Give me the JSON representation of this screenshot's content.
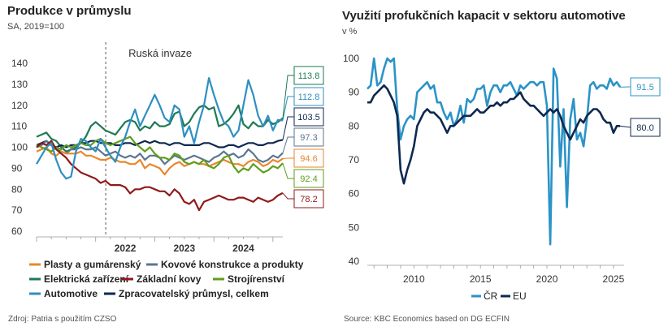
{
  "left": {
    "title": "Produkce v průmyslu",
    "subtitle": "SA, 2019=100",
    "source": "Zdroj: Patria s použitím CZSO",
    "chart_data": {
      "type": "line",
      "title": "Produkce v průmyslu",
      "ylabel": "SA, 2019=100",
      "ylim": [
        60,
        140
      ],
      "yticks": [
        60,
        70,
        80,
        90,
        100,
        110,
        120,
        130,
        140
      ],
      "xticks": [
        {
          "label": "2022",
          "x": 2022.5
        },
        {
          "label": "2023",
          "x": 2023.5
        },
        {
          "label": "2024",
          "x": 2024.5
        }
      ],
      "x_start": 2021.0,
      "x_step_months": 1,
      "annotation": {
        "text": "Ruská invaze",
        "x": 2022.17
      },
      "series": [
        {
          "name": "Automotive",
          "color": "#2e8fc0",
          "end_label": "112.8",
          "values": [
            92,
            96,
            100,
            102,
            94,
            88,
            85,
            86,
            98,
            104,
            103,
            100,
            98,
            104,
            100,
            96,
            93,
            100,
            105,
            112,
            118,
            110,
            115,
            120,
            125,
            120,
            114,
            112,
            120,
            118,
            105,
            110,
            102,
            112,
            120,
            133,
            125,
            118,
            112,
            110,
            105,
            108,
            120,
            132,
            125,
            115,
            110,
            115,
            108,
            113,
            112.8
          ]
        },
        {
          "name": "Elektrická zařízení",
          "color": "#1e7a52",
          "end_label": "113.8",
          "values": [
            105,
            106,
            107,
            104,
            103,
            100,
            98,
            99,
            100,
            102,
            105,
            110,
            112,
            110,
            108,
            107,
            106,
            109,
            112,
            113,
            112,
            108,
            110,
            109,
            112,
            110,
            110,
            111,
            116,
            117,
            110,
            112,
            116,
            119,
            120,
            118,
            119,
            110,
            111,
            113,
            116,
            120,
            111,
            109,
            112,
            110,
            110,
            113,
            111,
            112,
            113.8
          ]
        },
        {
          "name": "Zpracovatelský průmysl, celkem",
          "color": "#0f2850",
          "end_label": "103.5",
          "values": [
            101,
            102,
            103,
            101,
            100,
            101,
            100,
            101,
            101,
            102,
            102,
            103,
            103,
            102,
            102,
            102,
            101,
            101,
            102,
            102,
            101,
            102,
            103,
            102,
            103,
            102,
            102,
            101,
            102,
            102,
            101,
            101,
            101,
            101,
            102,
            102,
            101,
            100,
            100,
            101,
            101,
            100,
            101,
            102,
            102,
            101,
            101,
            102,
            102,
            103,
            103.5
          ]
        },
        {
          "name": "Kovové konstrukce a produkty",
          "color": "#5a7590",
          "end_label": "97.3",
          "values": [
            100,
            101,
            103,
            101,
            99,
            98,
            97,
            99,
            99,
            100,
            99,
            99,
            100,
            98,
            96,
            97,
            98,
            96,
            95,
            96,
            95,
            97,
            94,
            96,
            96,
            95,
            92,
            94,
            96,
            95,
            94,
            95,
            96,
            95,
            94,
            93,
            95,
            96,
            98,
            96,
            97,
            95,
            96,
            99,
            97,
            94,
            93,
            94,
            96,
            95,
            97.3
          ]
        },
        {
          "name": "Plasty a gumárenský",
          "color": "#e8872a",
          "end_label": "94.6",
          "values": [
            98,
            99,
            100,
            97,
            96,
            98,
            97,
            97,
            97,
            98,
            96,
            96,
            95,
            94,
            94,
            95,
            94,
            93,
            93,
            92,
            92,
            94,
            90,
            92,
            91,
            90,
            87,
            90,
            92,
            93,
            91,
            92,
            93,
            92,
            92,
            91,
            92,
            93,
            94,
            93,
            92,
            92,
            91,
            93,
            94,
            93,
            91,
            92,
            94,
            93,
            94.6
          ]
        },
        {
          "name": "Strojírenství",
          "color": "#5f9e1e",
          "end_label": "92.4",
          "values": [
            101,
            100,
            99,
            98,
            100,
            99,
            101,
            100,
            101,
            102,
            101,
            101,
            103,
            104,
            102,
            101,
            102,
            103,
            104,
            105,
            102,
            100,
            98,
            100,
            97,
            95,
            95,
            94,
            97,
            96,
            93,
            92,
            93,
            92,
            94,
            91,
            90,
            92,
            95,
            96,
            91,
            88,
            90,
            89,
            92,
            90,
            88,
            89,
            91,
            90,
            92.4
          ]
        },
        {
          "name": "Základní kovy",
          "color": "#8f1a1a",
          "end_label": "78.2",
          "values": [
            100,
            102,
            101,
            103,
            99,
            97,
            95,
            92,
            90,
            88,
            87,
            86,
            85,
            83,
            84,
            82,
            82,
            82,
            81,
            78,
            80,
            80,
            81,
            81,
            80,
            79,
            79,
            77,
            80,
            78,
            74,
            73,
            75,
            70,
            74,
            75,
            76,
            77,
            76,
            75,
            75,
            76,
            76,
            75,
            74,
            76,
            75,
            74,
            75,
            77,
            78.2
          ]
        }
      ],
      "legend": [
        "Plasty a gumárenský",
        "Kovové konstrukce a produkty",
        "Elektrická zařízení",
        "Základní kovy",
        "Strojírenství",
        "Automotive",
        "Zpracovatelský průmysl, celkem"
      ]
    }
  },
  "right": {
    "title": "Využití profukčních kapacit v sektoru automotive",
    "subtitle": "v %",
    "source": "Source: KBC Economics based on DG ECFIN",
    "chart_data": {
      "type": "line",
      "title": "Využití profukčních kapacit v sektoru automotive",
      "ylabel": "v %",
      "ylim": [
        40,
        100
      ],
      "yticks": [
        40,
        50,
        60,
        70,
        80,
        90,
        100
      ],
      "xlim": [
        2006.5,
        2025.8
      ],
      "xticks": [
        2010,
        2015,
        2020,
        2025
      ],
      "series": [
        {
          "name": "ČR",
          "color": "#2b93c8",
          "end_label": "91.5",
          "x": [
            2006.5,
            2006.75,
            2007,
            2007.25,
            2007.5,
            2007.75,
            2008,
            2008.25,
            2008.5,
            2008.75,
            2009,
            2009.25,
            2009.5,
            2009.75,
            2010,
            2010.25,
            2010.5,
            2010.75,
            2011,
            2011.25,
            2011.5,
            2011.75,
            2012,
            2012.25,
            2012.5,
            2012.75,
            2013,
            2013.25,
            2013.5,
            2013.75,
            2014,
            2014.25,
            2014.5,
            2014.75,
            2015,
            2015.25,
            2015.5,
            2015.75,
            2016,
            2016.25,
            2016.5,
            2016.75,
            2017,
            2017.25,
            2017.5,
            2017.75,
            2018,
            2018.25,
            2018.5,
            2018.75,
            2019,
            2019.25,
            2019.5,
            2019.75,
            2020,
            2020.25,
            2020.5,
            2020.75,
            2021,
            2021.25,
            2021.5,
            2021.75,
            2022,
            2022.25,
            2022.5,
            2022.75,
            2023,
            2023.25,
            2023.5,
            2023.75,
            2024,
            2024.25,
            2024.5,
            2024.75,
            2025,
            2025.25,
            2025.5
          ],
          "values": [
            91,
            92,
            100,
            92,
            93,
            97,
            100,
            99,
            100,
            85,
            76,
            80,
            82,
            83,
            82,
            90,
            91,
            92,
            93,
            91,
            92,
            87,
            87,
            84,
            82,
            84,
            80,
            82,
            86,
            81,
            88,
            87,
            88,
            91,
            91,
            92,
            86,
            90,
            92,
            92,
            90,
            92,
            92,
            93,
            91,
            89,
            92,
            91,
            92,
            93,
            93,
            92,
            93,
            93,
            86,
            45,
            97,
            94,
            68,
            85,
            56,
            82,
            88,
            76,
            78,
            74,
            82,
            92,
            93,
            91,
            92,
            92,
            91,
            94,
            92,
            93,
            91.5
          ]
        },
        {
          "name": "EU",
          "color": "#0f2850",
          "end_label": "80.0",
          "x": [
            2006.5,
            2006.75,
            2007,
            2007.25,
            2007.5,
            2007.75,
            2008,
            2008.25,
            2008.5,
            2008.75,
            2009,
            2009.25,
            2009.5,
            2009.75,
            2010,
            2010.25,
            2010.5,
            2010.75,
            2011,
            2011.25,
            2011.5,
            2011.75,
            2012,
            2012.25,
            2012.5,
            2012.75,
            2013,
            2013.25,
            2013.5,
            2013.75,
            2014,
            2014.25,
            2014.5,
            2014.75,
            2015,
            2015.25,
            2015.5,
            2015.75,
            2016,
            2016.25,
            2016.5,
            2016.75,
            2017,
            2017.25,
            2017.5,
            2017.75,
            2018,
            2018.25,
            2018.5,
            2018.75,
            2019,
            2019.25,
            2019.5,
            2019.75,
            2020,
            2020.25,
            2020.5,
            2020.75,
            2021,
            2021.25,
            2021.5,
            2021.75,
            2022,
            2022.25,
            2022.5,
            2022.75,
            2023,
            2023.25,
            2023.5,
            2023.75,
            2024,
            2024.25,
            2024.5,
            2024.75,
            2025,
            2025.25,
            2025.5
          ],
          "values": [
            87,
            87,
            89,
            90,
            91,
            92,
            91,
            89,
            87,
            83,
            67,
            63,
            67,
            70,
            74,
            80,
            82,
            84,
            85,
            84,
            84,
            83,
            82,
            80,
            78,
            80,
            80,
            81,
            82,
            83,
            83,
            83,
            84,
            85,
            84,
            84,
            85,
            86,
            86,
            87,
            86,
            87,
            87,
            88,
            88,
            89,
            90,
            88,
            87,
            86,
            86,
            85,
            84,
            83,
            84,
            85,
            84,
            85,
            83,
            80,
            78,
            76,
            78,
            80,
            82,
            81,
            83,
            84,
            85,
            85,
            84,
            82,
            81,
            81,
            78,
            80,
            80.0
          ]
        }
      ],
      "legend": [
        "ČR",
        "EU"
      ]
    }
  }
}
